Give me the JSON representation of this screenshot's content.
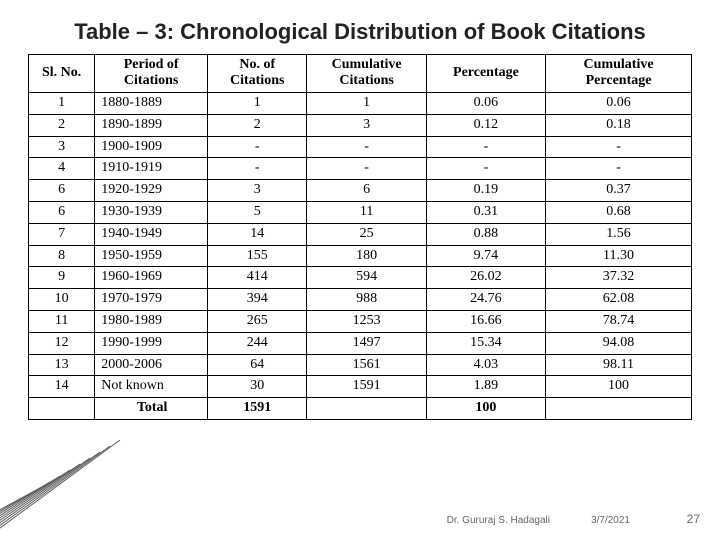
{
  "title": "Table – 3: Chronological Distribution of Book Citations",
  "table": {
    "columns": [
      "Sl. No.",
      "Period of Citations",
      "No. of Citations",
      "Cumulative Citations",
      "Percentage",
      "Cumulative Percentage"
    ],
    "header_lines": {
      "c1": [
        "Sl. No."
      ],
      "c2": [
        "Period of",
        "Citations"
      ],
      "c3": [
        "No. of",
        "Citations"
      ],
      "c4": [
        "Cumulative",
        "Citations"
      ],
      "c5": [
        "Percentage"
      ],
      "c6": [
        "Cumulative",
        "Percentage"
      ]
    },
    "rows": [
      {
        "sl": "1",
        "period": "1880-1889",
        "n": "1",
        "cum": "1",
        "pct": "0.06",
        "cumpct": "0.06"
      },
      {
        "sl": "2",
        "period": "1890-1899",
        "n": "2",
        "cum": "3",
        "pct": "0.12",
        "cumpct": "0.18"
      },
      {
        "sl": "3",
        "period": "1900-1909",
        "n": "-",
        "cum": "-",
        "pct": "-",
        "cumpct": "-"
      },
      {
        "sl": "4",
        "period": "1910-1919",
        "n": "-",
        "cum": "-",
        "pct": "-",
        "cumpct": "-"
      },
      {
        "sl": "6",
        "period": "1920-1929",
        "n": "3",
        "cum": "6",
        "pct": "0.19",
        "cumpct": "0.37"
      },
      {
        "sl": "6",
        "period": "1930-1939",
        "n": "5",
        "cum": "11",
        "pct": "0.31",
        "cumpct": "0.68"
      },
      {
        "sl": "7",
        "period": "1940-1949",
        "n": "14",
        "cum": "25",
        "pct": "0.88",
        "cumpct": "1.56"
      },
      {
        "sl": "8",
        "period": "1950-1959",
        "n": "155",
        "cum": "180",
        "pct": "9.74",
        "cumpct": "11.30"
      },
      {
        "sl": "9",
        "period": "1960-1969",
        "n": "414",
        "cum": "594",
        "pct": "26.02",
        "cumpct": "37.32"
      },
      {
        "sl": "10",
        "period": "1970-1979",
        "n": "394",
        "cum": "988",
        "pct": "24.76",
        "cumpct": "62.08"
      },
      {
        "sl": "11",
        "period": "1980-1989",
        "n": "265",
        "cum": "1253",
        "pct": "16.66",
        "cumpct": "78.74"
      },
      {
        "sl": "12",
        "period": "1990-1999",
        "n": "244",
        "cum": "1497",
        "pct": "15.34",
        "cumpct": "94.08"
      },
      {
        "sl": "13",
        "period": "2000-2006",
        "n": "64",
        "cum": "1561",
        "pct": "4.03",
        "cumpct": "98.11"
      },
      {
        "sl": "14",
        "period": "Not known",
        "n": "30",
        "cum": "1591",
        "pct": "1.89",
        "cumpct": "100"
      }
    ],
    "total": {
      "sl": "",
      "period": "Total",
      "n": "1591",
      "cum": "",
      "pct": "100",
      "cumpct": ""
    },
    "header_fontsize": 14,
    "cell_fontsize": 14,
    "border_color": "#000000",
    "background_color": "#ffffff",
    "col_widths_pct": [
      10,
      17,
      15,
      18,
      18,
      22
    ]
  },
  "footer": {
    "author": "Dr. Gururaj S. Hadagali",
    "date": "3/7/2021",
    "page": "27"
  },
  "decoration": {
    "line_color": "#5c5c5c",
    "line_count": 9
  }
}
